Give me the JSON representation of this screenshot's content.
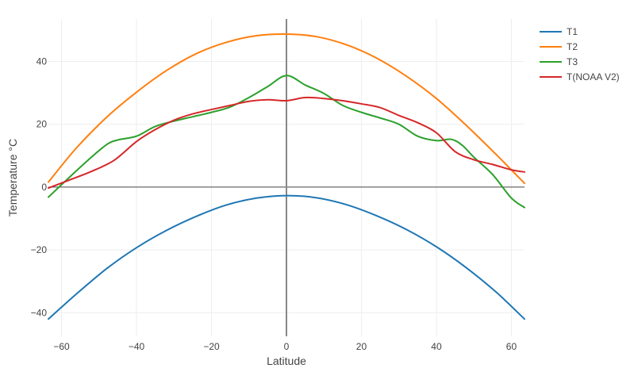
{
  "chart_data": {
    "type": "line",
    "title": "",
    "xlabel": "Latitude",
    "ylabel": "Temperature °C",
    "xlim": [
      -63.5,
      63.5
    ],
    "ylim": [
      -47.5,
      53.5
    ],
    "xticks": [
      -60,
      -40,
      -20,
      0,
      20,
      40,
      60
    ],
    "xtick_labels": [
      "−60",
      "−40",
      "−20",
      "0",
      "20",
      "40",
      "60"
    ],
    "yticks": [
      -40,
      -20,
      0,
      20,
      40
    ],
    "ytick_labels": [
      "−40",
      "−20",
      "0",
      "20",
      "40"
    ],
    "grid": true,
    "legend_position": "top-right",
    "zero_lines": {
      "x": 0,
      "y": 0
    },
    "series": [
      {
        "name": "T1",
        "color": "#1f77b4",
        "x": [
          -63.5,
          -56,
          -48,
          -40,
          -32,
          -24,
          -16,
          -8,
          0,
          8,
          16,
          24,
          32,
          40,
          48,
          56,
          63.5
        ],
        "y": [
          -42,
          -34,
          -26,
          -19.3,
          -13.8,
          -9.3,
          -5.7,
          -3.5,
          -2.7,
          -3.4,
          -5.6,
          -9.1,
          -13.5,
          -19,
          -25.7,
          -33.5,
          -42
        ]
      },
      {
        "name": "T2",
        "color": "#ff7f0e",
        "x": [
          -63.5,
          -56,
          -48,
          -40,
          -32,
          -24,
          -16,
          -8,
          0,
          8,
          16,
          24,
          32,
          40,
          48,
          56,
          63.5
        ],
        "y": [
          1.6,
          12.5,
          22.2,
          30.2,
          37.1,
          42.5,
          46.1,
          48.2,
          48.7,
          47.9,
          45.3,
          41.1,
          35.3,
          28.2,
          19.6,
          10.3,
          1.2
        ]
      },
      {
        "name": "T3",
        "color": "#2ca02c",
        "x": [
          -63.5,
          -58,
          -53,
          -48,
          -45,
          -40,
          -35,
          -30,
          -25,
          -20,
          -15,
          -10,
          -5,
          0,
          5,
          10,
          15,
          20,
          25,
          30,
          35,
          40,
          44,
          47,
          50,
          55,
          60,
          63.5
        ],
        "y": [
          -3.2,
          3,
          8.5,
          13.5,
          15,
          16.2,
          19.3,
          21,
          22.4,
          23.8,
          25.5,
          28.5,
          32,
          35.5,
          32.5,
          29.8,
          26,
          23.8,
          22,
          20,
          16.2,
          14.8,
          15.2,
          13.2,
          9.5,
          4,
          -3.5,
          -6.5
        ]
      },
      {
        "name": "T(NOAA V2)",
        "color": "#d62728",
        "x": [
          -63.5,
          -58,
          -52,
          -46,
          -40,
          -35,
          -30,
          -25,
          -20,
          -15,
          -10,
          -5,
          0,
          5,
          10,
          15,
          20,
          25,
          30,
          35,
          40,
          45,
          50,
          55,
          60,
          63.5
        ],
        "y": [
          -0.3,
          2.2,
          5,
          8.5,
          14.5,
          18.3,
          21.3,
          23.3,
          24.7,
          26,
          27.3,
          27.8,
          27.5,
          28.5,
          28.2,
          27.5,
          26.5,
          25.3,
          22.8,
          20.5,
          17.3,
          11.3,
          8.7,
          7.2,
          5.5,
          4.8
        ]
      }
    ]
  }
}
